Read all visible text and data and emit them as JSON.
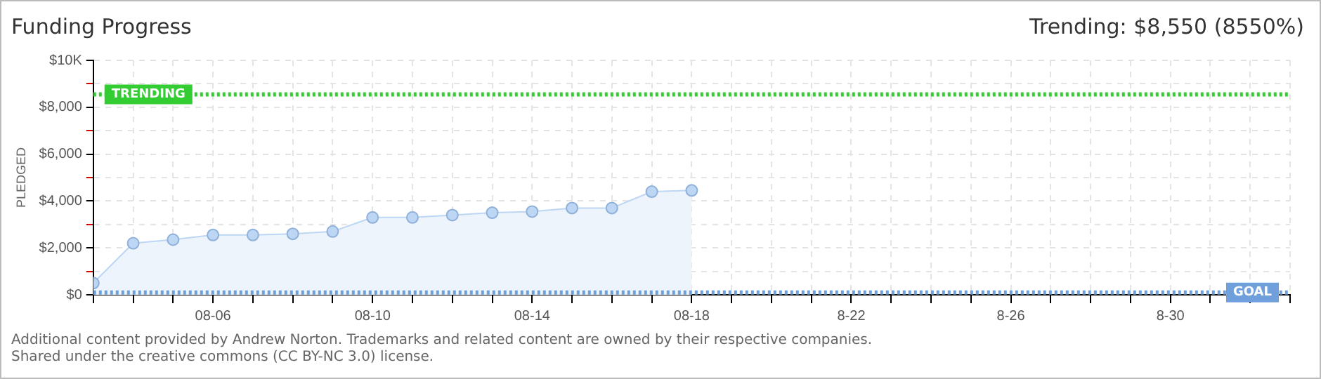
{
  "chart_data": {
    "type": "area",
    "title": "Funding Progress",
    "subtitle": "Trending: $8,550 (8550%)",
    "ylabel": "PLEDGED",
    "x": [
      "--08-03",
      "--08-04",
      "--08-05",
      "--08-06",
      "--08-07",
      "--08-08",
      "--08-09",
      "--08-10",
      "--08-11",
      "--08-12",
      "--08-13",
      "--08-14",
      "--08-15",
      "--08-16",
      "--08-17",
      "--08-18"
    ],
    "series": [
      {
        "color": "#bcd6f4",
        "values": [
          500,
          2200,
          2350,
          2550,
          2550,
          2600,
          2700,
          3300,
          3300,
          3400,
          3500,
          3550,
          3700,
          3700,
          4400,
          4450
        ]
      }
    ],
    "xlim": [
      "--08-03",
      "--09-02"
    ],
    "xticks": [
      {
        "value": "--08-03",
        "label": null
      },
      {
        "value": "--08-04",
        "label": null
      },
      {
        "value": "--08-05",
        "label": null
      },
      {
        "value": "--08-06",
        "label": "08-06"
      },
      {
        "value": "--08-07",
        "label": null
      },
      {
        "value": "--08-08",
        "label": null
      },
      {
        "value": "--08-09",
        "label": null
      },
      {
        "value": "--08-10",
        "label": "08-10"
      },
      {
        "value": "--08-11",
        "label": null
      },
      {
        "value": "--08-12",
        "label": null
      },
      {
        "value": "--08-13",
        "label": null
      },
      {
        "value": "--08-14",
        "label": "08-14"
      },
      {
        "value": "--08-15",
        "label": null
      },
      {
        "value": "--08-16",
        "label": null
      },
      {
        "value": "--08-17",
        "label": null
      },
      {
        "value": "--08-18",
        "label": "08-18"
      },
      {
        "value": "--08-19",
        "label": null
      },
      {
        "value": "--08-20",
        "label": null
      },
      {
        "value": "--08-21",
        "label": null
      },
      {
        "value": "--08-22",
        "label": "8-22"
      },
      {
        "value": "--08-23",
        "label": null
      },
      {
        "value": "--08-24",
        "label": null
      },
      {
        "value": "--08-25",
        "label": null
      },
      {
        "value": "--08-26",
        "label": "8-26"
      },
      {
        "value": "--08-27",
        "label": null
      },
      {
        "value": "--08-28",
        "label": null
      },
      {
        "value": "--08-29",
        "label": null
      },
      {
        "value": "--08-30",
        "label": "8-30"
      },
      {
        "value": "--08-31",
        "label": null
      },
      {
        "value": "--09-01",
        "label": null
      },
      {
        "value": "--09-02",
        "label": null
      }
    ],
    "ylim": [
      0,
      10000
    ],
    "yticks": [
      {
        "value": 0,
        "label": "$0"
      },
      {
        "value": 1000,
        "label": null
      },
      {
        "value": 2000,
        "label": "$2,000"
      },
      {
        "value": 3000,
        "label": null
      },
      {
        "value": 4000,
        "label": "$4,000"
      },
      {
        "value": 5000,
        "label": null
      },
      {
        "value": 6000,
        "label": "$6,000"
      },
      {
        "value": 7000,
        "label": null
      },
      {
        "value": 8000,
        "label": "$8,000"
      },
      {
        "value": 9000,
        "label": null
      },
      {
        "value": 10000,
        "label": "$10K"
      }
    ],
    "ref_lines": [
      {
        "axis": "y",
        "value": 8550,
        "label": "TRENDING",
        "color": "#33cc33",
        "line_style": "dotted"
      },
      {
        "axis": "y",
        "value": 100,
        "label": "GOAL",
        "color": "#6fa0dc",
        "line_style": "dotted"
      }
    ],
    "grid": true,
    "legend": false,
    "marker": "circle",
    "line_style": "solid",
    "annotations": [
      "Additional content provided by Andrew Norton. Trademarks and related content are owned by their respective companies.",
      "Shared under the creative commons (CC BY-NC 3.0) license."
    ]
  }
}
